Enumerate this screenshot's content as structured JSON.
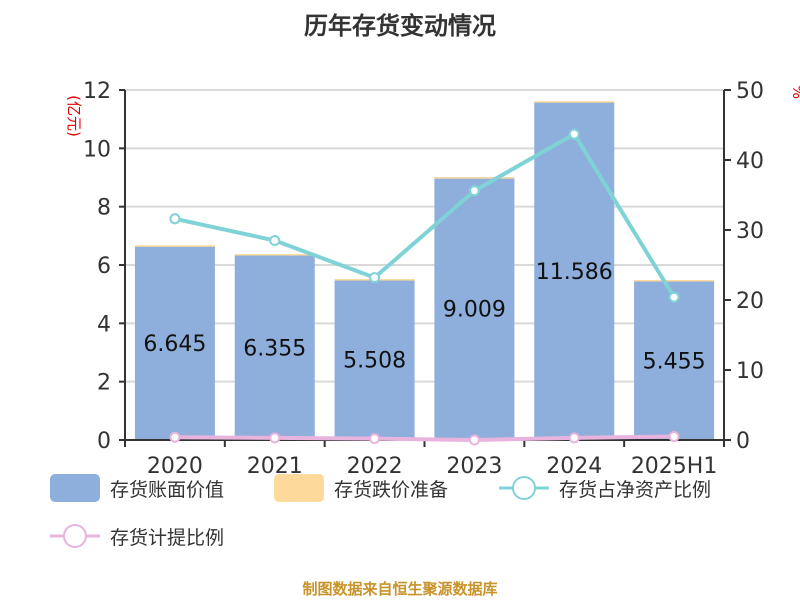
{
  "title": "历年存货变动情况",
  "source": "制图数据来自恒生聚源数据库",
  "colors": {
    "book_value": "#8eaedb",
    "impairment": "#fdd99b",
    "net_asset_ratio": "#7fd3d6",
    "provision_ratio": "#e8b4dd",
    "axis_label": "#e00000"
  },
  "legend": [
    {
      "label": "存货账面价值",
      "type": "bar"
    },
    {
      "label": "存货跌价准备",
      "type": "bar"
    },
    {
      "label": "存货占净资产比例",
      "type": "line"
    },
    {
      "label": "存货计提比例",
      "type": "line"
    }
  ],
  "chart_data": {
    "type": "bar",
    "title": "历年存货变动情况",
    "categories": [
      "2020",
      "2021",
      "2022",
      "2023",
      "2024",
      "2025H1"
    ],
    "series": [
      {
        "name": "存货账面价值",
        "type": "bar",
        "axis": "left",
        "values": [
          6.645,
          6.355,
          5.508,
          9.009,
          11.586,
          5.455
        ]
      },
      {
        "name": "存货跌价准备",
        "type": "bar",
        "axis": "left",
        "stacked": true,
        "values": [
          0.03,
          0.02,
          0.01,
          0.0,
          0.03,
          0.03
        ]
      },
      {
        "name": "存货占净资产比例",
        "type": "line",
        "axis": "right",
        "values": [
          31.6,
          28.5,
          23.2,
          35.6,
          43.7,
          20.4
        ]
      },
      {
        "name": "存货计提比例",
        "type": "line",
        "axis": "right",
        "values": [
          0.4,
          0.3,
          0.2,
          0.0,
          0.3,
          0.5
        ]
      }
    ],
    "ylabel": "(亿元)",
    "y2label": "%",
    "ylim": [
      0,
      12
    ],
    "y2lim": [
      0,
      50
    ],
    "yticks": [
      0,
      2,
      4,
      6,
      8,
      10,
      12
    ],
    "y2ticks": [
      0,
      10,
      20,
      30,
      40,
      50
    ],
    "data_labels": [
      "6.645",
      "6.355",
      "5.508",
      "9.009",
      "11.586",
      "5.455"
    ],
    "grid": true,
    "legend_position": "bottom"
  }
}
